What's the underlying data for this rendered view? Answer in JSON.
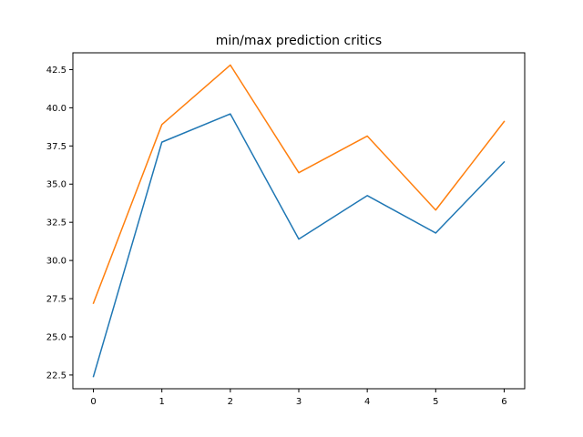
{
  "chart_data": {
    "type": "line",
    "title": "min/max prediction critics",
    "xlabel": "",
    "ylabel": "",
    "x": [
      0,
      1,
      2,
      3,
      4,
      5,
      6
    ],
    "xlim": [
      -0.3,
      6.3
    ],
    "ylim": [
      21.6,
      43.6
    ],
    "xticks": [
      0,
      1,
      2,
      3,
      4,
      5,
      6
    ],
    "xtick_labels": [
      "0",
      "1",
      "2",
      "3",
      "4",
      "5",
      "6"
    ],
    "yticks": [
      22.5,
      25.0,
      27.5,
      30.0,
      32.5,
      35.0,
      37.5,
      40.0,
      42.5
    ],
    "ytick_labels": [
      "22.5",
      "25.0",
      "27.5",
      "30.0",
      "32.5",
      "35.0",
      "37.5",
      "40.0",
      "42.5"
    ],
    "grid": false,
    "series": [
      {
        "color": "#1f77b4",
        "values": [
          22.4,
          37.75,
          39.6,
          31.4,
          34.25,
          31.8,
          36.45
        ]
      },
      {
        "color": "#ff7f0e",
        "values": [
          27.2,
          38.9,
          42.8,
          35.75,
          38.15,
          33.3,
          39.1
        ]
      }
    ]
  }
}
